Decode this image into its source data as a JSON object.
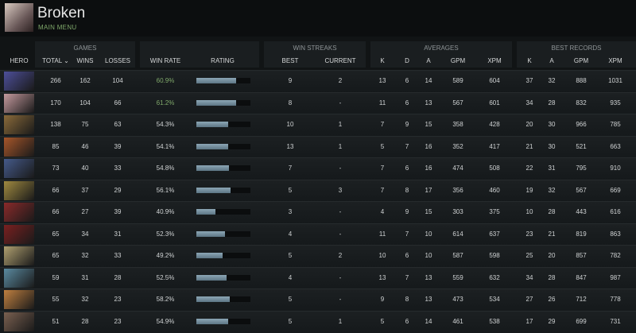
{
  "header": {
    "title": "Broken",
    "subtitle": "MAIN MENU"
  },
  "table": {
    "groups": [
      "GAMES",
      "WIN STREAKS",
      "AVERAGES",
      "BEST RECORDS"
    ],
    "columns": [
      "HERO",
      "TOTAL ⌄",
      "WINS",
      "LOSSES",
      "WIN RATE",
      "RATING",
      "BEST",
      "CURRENT",
      "K",
      "D",
      "A",
      "GPM",
      "XPM",
      "K",
      "A",
      "GPM",
      "XPM"
    ],
    "rows": [
      [
        266,
        162,
        104,
        "60.9%",
        74,
        9,
        2,
        13,
        6,
        14,
        589,
        604,
        37,
        32,
        888,
        1031
      ],
      [
        170,
        104,
        66,
        "61.2%",
        73,
        8,
        "-",
        11,
        6,
        13,
        567,
        601,
        34,
        28,
        832,
        935
      ],
      [
        138,
        75,
        63,
        "54.3%",
        59,
        10,
        1,
        7,
        9,
        15,
        358,
        428,
        20,
        30,
        966,
        785
      ],
      [
        85,
        46,
        39,
        "54.1%",
        59,
        13,
        1,
        5,
        7,
        16,
        352,
        417,
        21,
        30,
        521,
        663
      ],
      [
        73,
        40,
        33,
        "54.8%",
        60,
        7,
        "-",
        7,
        6,
        16,
        474,
        508,
        22,
        31,
        795,
        910
      ],
      [
        66,
        37,
        29,
        "56.1%",
        63,
        5,
        3,
        7,
        8,
        17,
        356,
        460,
        19,
        32,
        567,
        669
      ],
      [
        66,
        27,
        39,
        "40.9%",
        35,
        3,
        "-",
        4,
        9,
        15,
        303,
        375,
        10,
        28,
        443,
        616
      ],
      [
        65,
        34,
        31,
        "52.3%",
        53,
        4,
        "-",
        11,
        7,
        10,
        614,
        637,
        23,
        21,
        819,
        863
      ],
      [
        65,
        32,
        33,
        "49.2%",
        49,
        5,
        2,
        10,
        6,
        10,
        587,
        598,
        25,
        20,
        857,
        782
      ],
      [
        59,
        31,
        28,
        "52.5%",
        56,
        4,
        "-",
        13,
        7,
        13,
        559,
        632,
        34,
        28,
        847,
        987
      ],
      [
        55,
        32,
        23,
        "58.2%",
        62,
        5,
        "-",
        9,
        8,
        13,
        473,
        534,
        27,
        26,
        712,
        778
      ],
      [
        51,
        28,
        23,
        "54.9%",
        59,
        5,
        1,
        5,
        6,
        14,
        461,
        538,
        17,
        29,
        699,
        731
      ]
    ]
  }
}
